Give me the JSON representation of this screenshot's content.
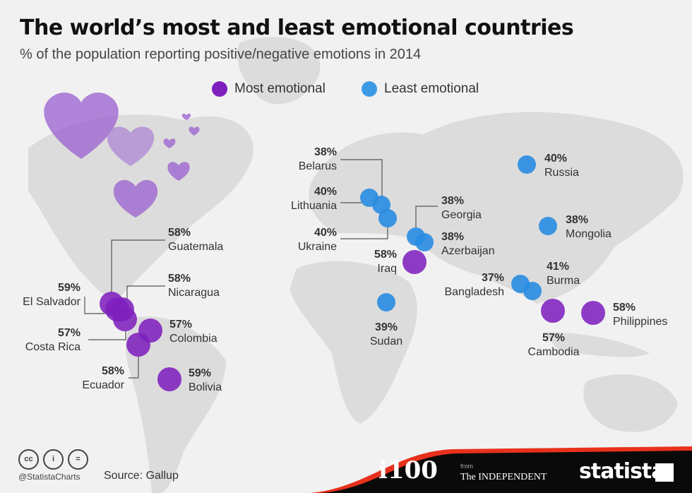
{
  "title": "The world’s most and least emotional countries",
  "subtitle": "% of the population reporting positive/negative emotions in 2014",
  "legend": {
    "most": "Most emotional",
    "least": "Least emotional"
  },
  "colors": {
    "most": "#7e20be",
    "least": "#288ce1",
    "land": "#dcdcdc",
    "background": "#f1f1f1",
    "accent": "#e8311c"
  },
  "most_emotional": [
    {
      "country": "Guatemala",
      "value": "58%"
    },
    {
      "country": "El Salvador",
      "value": "59%"
    },
    {
      "country": "Nicaragua",
      "value": "58%"
    },
    {
      "country": "Costa Rica",
      "value": "57%"
    },
    {
      "country": "Colombia",
      "value": "57%"
    },
    {
      "country": "Ecuador",
      "value": "58%"
    },
    {
      "country": "Bolivia",
      "value": "59%"
    },
    {
      "country": "Iraq",
      "value": "58%"
    },
    {
      "country": "Cambodia",
      "value": "57%"
    },
    {
      "country": "Philippines",
      "value": "58%"
    }
  ],
  "least_emotional": [
    {
      "country": "Belarus",
      "value": "38%"
    },
    {
      "country": "Lithuania",
      "value": "40%"
    },
    {
      "country": "Ukraine",
      "value": "40%"
    },
    {
      "country": "Georgia",
      "value": "38%"
    },
    {
      "country": "Azerbaijan",
      "value": "38%"
    },
    {
      "country": "Russia",
      "value": "40%"
    },
    {
      "country": "Mongolia",
      "value": "38%"
    },
    {
      "country": "Bangladesh",
      "value": "37%"
    },
    {
      "country": "Burma",
      "value": "41%"
    },
    {
      "country": "Sudan",
      "value": "39%"
    }
  ],
  "footer": {
    "license_icons": [
      "cc-icon",
      "attribution-icon",
      "no-derivatives-icon"
    ],
    "cc": "cc",
    "by": "i",
    "nd": "=",
    "handle": "@StatistaCharts",
    "source": "Source: Gallup",
    "i100": "i100",
    "from": "from",
    "independent": "The INDEPENDENT",
    "statista": "statista"
  }
}
